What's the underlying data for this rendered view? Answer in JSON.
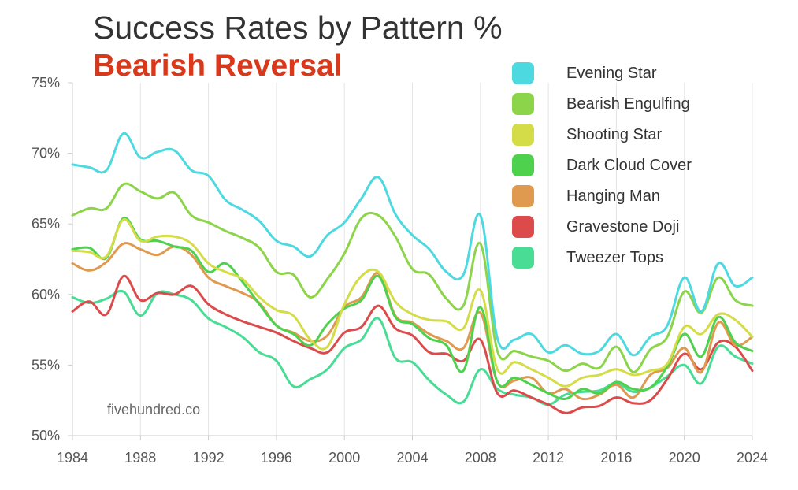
{
  "chart_data": {
    "type": "line",
    "title": "Success Rates by Pattern %",
    "subtitle": "Bearish Reversal",
    "watermark": "fivehundred.co",
    "xlabel": "",
    "ylabel": "",
    "xlim": [
      1984,
      2024
    ],
    "ylim": [
      50,
      75
    ],
    "y_ticks": [
      "75%",
      "70%",
      "65%",
      "60%",
      "55%",
      "50%"
    ],
    "y_tick_values": [
      75,
      70,
      65,
      60,
      55,
      50
    ],
    "x_ticks": [
      "1984",
      "1988",
      "1992",
      "1996",
      "2000",
      "2004",
      "2008",
      "2012",
      "2016",
      "2020",
      "2024"
    ],
    "x_tick_values": [
      1984,
      1988,
      1992,
      1996,
      2000,
      2004,
      2008,
      2012,
      2016,
      2020,
      2024
    ],
    "grid": "vertical",
    "legend_position": "top-right",
    "x": [
      1984,
      1985,
      1986,
      1987,
      1988,
      1989,
      1990,
      1991,
      1992,
      1993,
      1994,
      1995,
      1996,
      1997,
      1998,
      1999,
      2000,
      2001,
      2002,
      2003,
      2004,
      2005,
      2006,
      2007,
      2008,
      2009,
      2010,
      2011,
      2012,
      2013,
      2014,
      2015,
      2016,
      2017,
      2018,
      2019,
      2020,
      2021,
      2022,
      2023,
      2024
    ],
    "series": [
      {
        "name": "Evening Star",
        "color": "#4dd9e0",
        "values": [
          69.2,
          69.0,
          68.8,
          71.4,
          69.7,
          70.1,
          70.2,
          68.8,
          68.4,
          66.7,
          66.0,
          65.2,
          63.8,
          63.4,
          62.7,
          64.2,
          65.1,
          66.8,
          68.3,
          65.7,
          64.2,
          63.2,
          61.6,
          61.4,
          65.6,
          56.9,
          56.8,
          57.2,
          55.9,
          56.4,
          55.8,
          56.0,
          57.2,
          55.7,
          57.0,
          57.8,
          61.2,
          58.8,
          62.2,
          60.6,
          61.2
        ]
      },
      {
        "name": "Bearish Engulfing",
        "color": "#8cd44a",
        "values": [
          65.6,
          66.1,
          66.1,
          67.8,
          67.3,
          66.8,
          67.2,
          65.6,
          65.1,
          64.5,
          64.0,
          63.3,
          61.6,
          61.4,
          59.8,
          61.1,
          62.9,
          65.4,
          65.6,
          64.1,
          61.8,
          61.4,
          59.7,
          59.2,
          63.6,
          56.0,
          56.0,
          55.6,
          55.3,
          54.6,
          55.1,
          54.8,
          56.3,
          54.5,
          56.1,
          57.0,
          60.2,
          58.7,
          61.2,
          59.6,
          59.2
        ]
      },
      {
        "name": "Shooting Star",
        "color": "#d4dc48",
        "values": [
          63.1,
          63.0,
          62.7,
          65.3,
          63.8,
          64.1,
          64.1,
          63.6,
          62.2,
          61.6,
          61.1,
          59.8,
          58.9,
          58.5,
          56.8,
          56.3,
          59.3,
          61.3,
          61.6,
          59.5,
          58.6,
          58.2,
          58.1,
          57.6,
          60.3,
          54.7,
          55.2,
          54.7,
          54.1,
          53.5,
          54.1,
          54.3,
          54.7,
          54.3,
          54.6,
          55.1,
          57.7,
          57.2,
          58.6,
          58.2,
          57.0
        ]
      },
      {
        "name": "Dark Cloud Cover",
        "color": "#4ed24e",
        "values": [
          63.2,
          63.3,
          62.6,
          65.4,
          63.9,
          63.8,
          63.4,
          63.1,
          61.6,
          62.2,
          60.9,
          59.3,
          57.8,
          57.2,
          56.4,
          57.9,
          59.0,
          59.6,
          61.3,
          58.4,
          57.9,
          56.9,
          56.4,
          54.6,
          59.1,
          53.8,
          54.1,
          53.6,
          53.0,
          52.6,
          53.3,
          53.0,
          53.8,
          53.3,
          53.4,
          54.9,
          57.2,
          55.6,
          58.4,
          56.6,
          56.0
        ]
      },
      {
        "name": "Hanging Man",
        "color": "#e09a50",
        "values": [
          62.2,
          61.7,
          62.3,
          63.6,
          63.2,
          62.8,
          63.4,
          62.8,
          61.2,
          60.6,
          60.1,
          59.4,
          57.8,
          57.3,
          56.7,
          57.1,
          59.1,
          59.8,
          61.5,
          58.5,
          58.0,
          57.2,
          56.7,
          56.2,
          58.7,
          53.8,
          53.9,
          54.1,
          53.0,
          53.3,
          52.6,
          52.9,
          53.6,
          52.7,
          54.3,
          54.8,
          56.2,
          54.5,
          58.0,
          56.4,
          57.0
        ]
      },
      {
        "name": "Gravestone Doji",
        "color": "#dc4b4b",
        "values": [
          58.8,
          59.5,
          58.6,
          61.3,
          59.6,
          60.1,
          60.0,
          60.6,
          59.3,
          58.6,
          58.1,
          57.7,
          57.3,
          56.7,
          56.2,
          55.9,
          57.3,
          57.7,
          59.2,
          57.6,
          57.1,
          55.9,
          55.8,
          55.3,
          56.8,
          53.0,
          53.2,
          52.7,
          52.2,
          51.6,
          52.0,
          52.1,
          52.7,
          52.3,
          52.5,
          54.0,
          55.8,
          54.7,
          56.6,
          56.3,
          54.6
        ]
      },
      {
        "name": "Tweezer Tops",
        "color": "#48dc94",
        "values": [
          59.8,
          59.4,
          59.7,
          60.2,
          58.5,
          60.1,
          60.0,
          59.6,
          58.3,
          57.7,
          57.0,
          55.9,
          55.3,
          53.5,
          54.0,
          54.7,
          56.2,
          56.8,
          58.3,
          55.5,
          55.2,
          53.9,
          52.9,
          52.4,
          54.7,
          53.3,
          52.9,
          52.7,
          52.2,
          52.9,
          53.1,
          53.2,
          53.7,
          53.1,
          53.4,
          54.2,
          55.0,
          53.7,
          56.3,
          55.6,
          55.1
        ]
      }
    ]
  }
}
